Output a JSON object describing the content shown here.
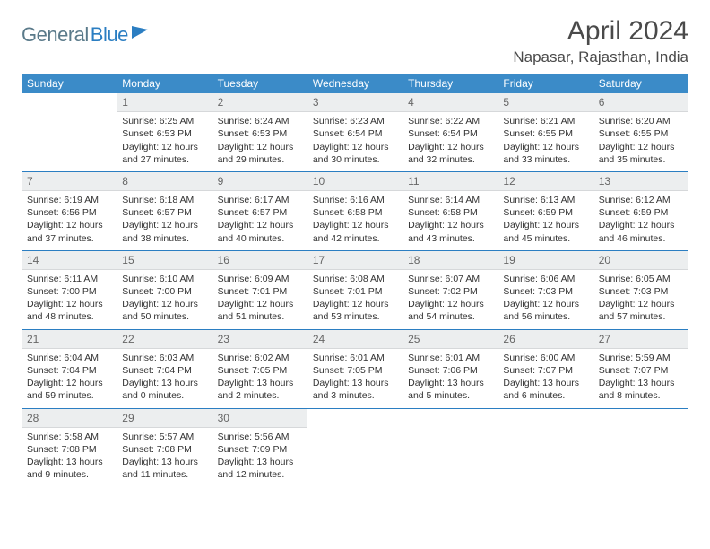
{
  "logo": {
    "part1": "General",
    "part2": "Blue"
  },
  "title": {
    "month": "April 2024",
    "location": "Napasar, Rajasthan, India"
  },
  "weekdays": [
    "Sunday",
    "Monday",
    "Tuesday",
    "Wednesday",
    "Thursday",
    "Friday",
    "Saturday"
  ],
  "colors": {
    "header_bg": "#3b8bc8",
    "daybar": "#eceeef",
    "rule": "#2b7ec2"
  },
  "font": {
    "cell_size": 10.5,
    "daynum_size": 12,
    "header_size": 12
  },
  "weeks": [
    [
      {
        "n": "",
        "sr": "",
        "ss": "",
        "dl": "",
        "empty": true
      },
      {
        "n": "1",
        "sr": "Sunrise: 6:25 AM",
        "ss": "Sunset: 6:53 PM",
        "dl": "Daylight: 12 hours and 27 minutes."
      },
      {
        "n": "2",
        "sr": "Sunrise: 6:24 AM",
        "ss": "Sunset: 6:53 PM",
        "dl": "Daylight: 12 hours and 29 minutes."
      },
      {
        "n": "3",
        "sr": "Sunrise: 6:23 AM",
        "ss": "Sunset: 6:54 PM",
        "dl": "Daylight: 12 hours and 30 minutes."
      },
      {
        "n": "4",
        "sr": "Sunrise: 6:22 AM",
        "ss": "Sunset: 6:54 PM",
        "dl": "Daylight: 12 hours and 32 minutes."
      },
      {
        "n": "5",
        "sr": "Sunrise: 6:21 AM",
        "ss": "Sunset: 6:55 PM",
        "dl": "Daylight: 12 hours and 33 minutes."
      },
      {
        "n": "6",
        "sr": "Sunrise: 6:20 AM",
        "ss": "Sunset: 6:55 PM",
        "dl": "Daylight: 12 hours and 35 minutes."
      }
    ],
    [
      {
        "n": "7",
        "sr": "Sunrise: 6:19 AM",
        "ss": "Sunset: 6:56 PM",
        "dl": "Daylight: 12 hours and 37 minutes."
      },
      {
        "n": "8",
        "sr": "Sunrise: 6:18 AM",
        "ss": "Sunset: 6:57 PM",
        "dl": "Daylight: 12 hours and 38 minutes."
      },
      {
        "n": "9",
        "sr": "Sunrise: 6:17 AM",
        "ss": "Sunset: 6:57 PM",
        "dl": "Daylight: 12 hours and 40 minutes."
      },
      {
        "n": "10",
        "sr": "Sunrise: 6:16 AM",
        "ss": "Sunset: 6:58 PM",
        "dl": "Daylight: 12 hours and 42 minutes."
      },
      {
        "n": "11",
        "sr": "Sunrise: 6:14 AM",
        "ss": "Sunset: 6:58 PM",
        "dl": "Daylight: 12 hours and 43 minutes."
      },
      {
        "n": "12",
        "sr": "Sunrise: 6:13 AM",
        "ss": "Sunset: 6:59 PM",
        "dl": "Daylight: 12 hours and 45 minutes."
      },
      {
        "n": "13",
        "sr": "Sunrise: 6:12 AM",
        "ss": "Sunset: 6:59 PM",
        "dl": "Daylight: 12 hours and 46 minutes."
      }
    ],
    [
      {
        "n": "14",
        "sr": "Sunrise: 6:11 AM",
        "ss": "Sunset: 7:00 PM",
        "dl": "Daylight: 12 hours and 48 minutes."
      },
      {
        "n": "15",
        "sr": "Sunrise: 6:10 AM",
        "ss": "Sunset: 7:00 PM",
        "dl": "Daylight: 12 hours and 50 minutes."
      },
      {
        "n": "16",
        "sr": "Sunrise: 6:09 AM",
        "ss": "Sunset: 7:01 PM",
        "dl": "Daylight: 12 hours and 51 minutes."
      },
      {
        "n": "17",
        "sr": "Sunrise: 6:08 AM",
        "ss": "Sunset: 7:01 PM",
        "dl": "Daylight: 12 hours and 53 minutes."
      },
      {
        "n": "18",
        "sr": "Sunrise: 6:07 AM",
        "ss": "Sunset: 7:02 PM",
        "dl": "Daylight: 12 hours and 54 minutes."
      },
      {
        "n": "19",
        "sr": "Sunrise: 6:06 AM",
        "ss": "Sunset: 7:03 PM",
        "dl": "Daylight: 12 hours and 56 minutes."
      },
      {
        "n": "20",
        "sr": "Sunrise: 6:05 AM",
        "ss": "Sunset: 7:03 PM",
        "dl": "Daylight: 12 hours and 57 minutes."
      }
    ],
    [
      {
        "n": "21",
        "sr": "Sunrise: 6:04 AM",
        "ss": "Sunset: 7:04 PM",
        "dl": "Daylight: 12 hours and 59 minutes."
      },
      {
        "n": "22",
        "sr": "Sunrise: 6:03 AM",
        "ss": "Sunset: 7:04 PM",
        "dl": "Daylight: 13 hours and 0 minutes."
      },
      {
        "n": "23",
        "sr": "Sunrise: 6:02 AM",
        "ss": "Sunset: 7:05 PM",
        "dl": "Daylight: 13 hours and 2 minutes."
      },
      {
        "n": "24",
        "sr": "Sunrise: 6:01 AM",
        "ss": "Sunset: 7:05 PM",
        "dl": "Daylight: 13 hours and 3 minutes."
      },
      {
        "n": "25",
        "sr": "Sunrise: 6:01 AM",
        "ss": "Sunset: 7:06 PM",
        "dl": "Daylight: 13 hours and 5 minutes."
      },
      {
        "n": "26",
        "sr": "Sunrise: 6:00 AM",
        "ss": "Sunset: 7:07 PM",
        "dl": "Daylight: 13 hours and 6 minutes."
      },
      {
        "n": "27",
        "sr": "Sunrise: 5:59 AM",
        "ss": "Sunset: 7:07 PM",
        "dl": "Daylight: 13 hours and 8 minutes."
      }
    ],
    [
      {
        "n": "28",
        "sr": "Sunrise: 5:58 AM",
        "ss": "Sunset: 7:08 PM",
        "dl": "Daylight: 13 hours and 9 minutes."
      },
      {
        "n": "29",
        "sr": "Sunrise: 5:57 AM",
        "ss": "Sunset: 7:08 PM",
        "dl": "Daylight: 13 hours and 11 minutes."
      },
      {
        "n": "30",
        "sr": "Sunrise: 5:56 AM",
        "ss": "Sunset: 7:09 PM",
        "dl": "Daylight: 13 hours and 12 minutes."
      },
      {
        "n": "",
        "sr": "",
        "ss": "",
        "dl": "",
        "empty": true
      },
      {
        "n": "",
        "sr": "",
        "ss": "",
        "dl": "",
        "empty": true
      },
      {
        "n": "",
        "sr": "",
        "ss": "",
        "dl": "",
        "empty": true
      },
      {
        "n": "",
        "sr": "",
        "ss": "",
        "dl": "",
        "empty": true
      }
    ]
  ]
}
